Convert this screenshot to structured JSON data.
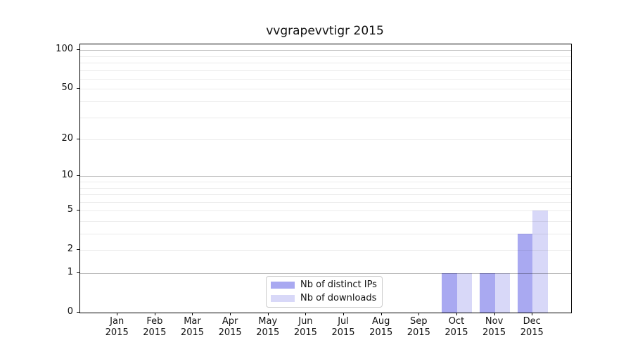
{
  "title": "vvgrapevvtigr 2015",
  "chart_data": {
    "type": "bar",
    "title": "vvgrapevvtigr 2015",
    "categories": [
      "Jan 2015",
      "Feb 2015",
      "Mar 2015",
      "Apr 2015",
      "May 2015",
      "Jun 2015",
      "Jul 2015",
      "Aug 2015",
      "Sep 2015",
      "Oct 2015",
      "Nov 2015",
      "Dec 2015"
    ],
    "x_tick_month": [
      "Jan",
      "Feb",
      "Mar",
      "Apr",
      "May",
      "Jun",
      "Jul",
      "Aug",
      "Sep",
      "Oct",
      "Nov",
      "Dec"
    ],
    "x_tick_year": "2015",
    "series": [
      {
        "name": "Nb of distinct IPs",
        "color": "#a9a9f1",
        "values": [
          0,
          0,
          0,
          0,
          0,
          0,
          0,
          0,
          0,
          1,
          1,
          3
        ]
      },
      {
        "name": "Nb of downloads",
        "color": "#d8d8f8",
        "values": [
          0,
          0,
          0,
          0,
          0,
          0,
          0,
          0,
          0,
          1,
          1,
          5
        ]
      }
    ],
    "xlabel": "",
    "ylabel": "",
    "y_scale": "log1p",
    "ylim": [
      0,
      112
    ],
    "y_ticks": [
      0,
      1,
      2,
      5,
      10,
      20,
      50,
      100
    ],
    "y_major_gridlines": [
      1,
      10,
      100
    ],
    "y_minor_gridlines": [
      2,
      3,
      4,
      5,
      6,
      7,
      8,
      9,
      20,
      30,
      40,
      50,
      60,
      70,
      80,
      90
    ],
    "grid": true,
    "legend_position": "lower center",
    "colors": {
      "axis": "#000000",
      "major_grid": "#c3c3c3",
      "minor_grid": "#ececec",
      "text": "#111111",
      "background": "#ffffff"
    }
  }
}
